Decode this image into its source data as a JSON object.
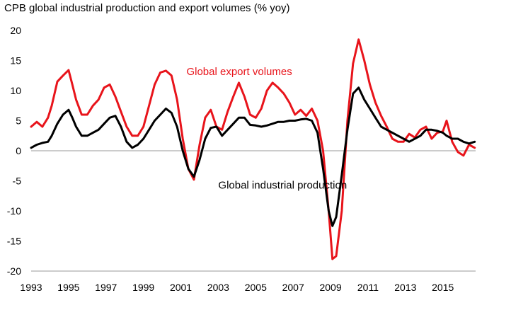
{
  "chart_data": {
    "type": "line",
    "title": "CPB global industrial production and export volumes (% yoy)",
    "xlabel": "",
    "ylabel": "",
    "xlim": [
      1993,
      2016.75
    ],
    "ylim": [
      -20,
      20
    ],
    "y_ticks": [
      20,
      15,
      10,
      5,
      0,
      -5,
      -10,
      -15,
      -20
    ],
    "x_ticks": [
      1993,
      1995,
      1997,
      1999,
      2001,
      2003,
      2005,
      2007,
      2009,
      2011,
      2013,
      2015
    ],
    "grid": "horizontal",
    "series": [
      {
        "name": "Global export volumes",
        "color": "#e8141b",
        "x": [
          1993.0,
          1993.3,
          1993.6,
          1993.9,
          1994.1,
          1994.4,
          1994.7,
          1995.0,
          1995.2,
          1995.4,
          1995.7,
          1996.0,
          1996.3,
          1996.6,
          1996.9,
          1997.2,
          1997.5,
          1997.8,
          1998.1,
          1998.4,
          1998.7,
          1999.0,
          1999.3,
          1999.6,
          1999.9,
          2000.2,
          2000.5,
          2000.8,
          2001.1,
          2001.4,
          2001.7,
          2002.0,
          2002.3,
          2002.6,
          2002.9,
          2003.2,
          2003.5,
          2003.8,
          2004.1,
          2004.4,
          2004.7,
          2005.0,
          2005.3,
          2005.6,
          2005.9,
          2006.2,
          2006.5,
          2006.8,
          2007.1,
          2007.4,
          2007.7,
          2008.0,
          2008.3,
          2008.6,
          2008.9,
          2009.1,
          2009.3,
          2009.6,
          2009.9,
          2010.2,
          2010.5,
          2010.8,
          2011.1,
          2011.4,
          2011.7,
          2012.0,
          2012.3,
          2012.6,
          2012.9,
          2013.2,
          2013.5,
          2013.8,
          2014.1,
          2014.4,
          2014.7,
          2015.0,
          2015.2,
          2015.5,
          2015.8,
          2016.1,
          2016.4,
          2016.7
        ],
        "values": [
          4,
          4.8,
          4,
          5.5,
          7.5,
          11.5,
          12.5,
          13.4,
          11,
          8.5,
          6,
          6,
          7.5,
          8.5,
          10.5,
          11,
          9,
          6.5,
          4,
          2.5,
          2.5,
          4,
          7.5,
          11,
          13,
          13.3,
          12.5,
          8.5,
          2,
          -3,
          -4.8,
          1,
          5.5,
          6.8,
          4,
          3.5,
          6.5,
          9,
          11.3,
          9,
          6,
          5.5,
          7,
          10,
          11.3,
          10.5,
          9.5,
          8,
          6,
          6.8,
          5.8,
          7,
          5,
          0,
          -10,
          -18,
          -17.5,
          -10,
          5,
          14.5,
          18.5,
          15,
          11,
          8,
          5.8,
          4,
          2,
          1.5,
          1.5,
          2.8,
          2.2,
          3.5,
          4,
          2,
          3,
          3.2,
          5,
          1.5,
          -0.2,
          -0.8,
          1,
          0.5
        ]
      },
      {
        "name": "Global industrial production",
        "color": "#000000",
        "x": [
          1993.0,
          1993.3,
          1993.6,
          1993.9,
          1994.1,
          1994.4,
          1994.7,
          1995.0,
          1995.2,
          1995.4,
          1995.7,
          1996.0,
          1996.3,
          1996.6,
          1996.9,
          1997.2,
          1997.5,
          1997.8,
          1998.1,
          1998.4,
          1998.7,
          1999.0,
          1999.3,
          1999.6,
          1999.9,
          2000.2,
          2000.5,
          2000.8,
          2001.1,
          2001.4,
          2001.7,
          2002.0,
          2002.3,
          2002.6,
          2002.9,
          2003.2,
          2003.5,
          2003.8,
          2004.1,
          2004.4,
          2004.7,
          2005.0,
          2005.3,
          2005.6,
          2005.9,
          2006.2,
          2006.5,
          2006.8,
          2007.1,
          2007.4,
          2007.7,
          2008.0,
          2008.3,
          2008.6,
          2008.9,
          2009.1,
          2009.3,
          2009.6,
          2009.9,
          2010.2,
          2010.5,
          2010.8,
          2011.1,
          2011.4,
          2011.7,
          2012.0,
          2012.3,
          2012.6,
          2012.9,
          2013.2,
          2013.5,
          2013.8,
          2014.1,
          2014.4,
          2014.7,
          2015.0,
          2015.2,
          2015.5,
          2015.8,
          2016.1,
          2016.4,
          2016.7
        ],
        "values": [
          0.5,
          1,
          1.3,
          1.5,
          2.5,
          4.5,
          6,
          6.8,
          5.5,
          4,
          2.5,
          2.5,
          3,
          3.5,
          4.5,
          5.5,
          5.8,
          4,
          1.5,
          0.5,
          1,
          2,
          3.5,
          5,
          6,
          7,
          6.3,
          4,
          0,
          -3,
          -4.3,
          -1.5,
          2,
          3.8,
          4,
          2.5,
          3.5,
          4.5,
          5.5,
          5.5,
          4.3,
          4.2,
          4,
          4.2,
          4.5,
          4.8,
          4.8,
          5,
          5,
          5.2,
          5.3,
          5,
          3,
          -3,
          -10,
          -12.5,
          -11,
          -4,
          3.5,
          9.5,
          10.5,
          8.5,
          7,
          5.5,
          4,
          3.5,
          3,
          2.5,
          2,
          1.5,
          2,
          2.5,
          3.5,
          3.5,
          3.3,
          3,
          2.5,
          2,
          2,
          1.5,
          1.2,
          1.5
        ]
      }
    ],
    "annotations": [
      {
        "text": "Global export volumes",
        "color": "#e8141b",
        "x": 2001.3,
        "y": 12.6
      },
      {
        "text": "Global industrial production",
        "color": "#000000",
        "x": 2003.0,
        "y": -6.3
      }
    ]
  }
}
